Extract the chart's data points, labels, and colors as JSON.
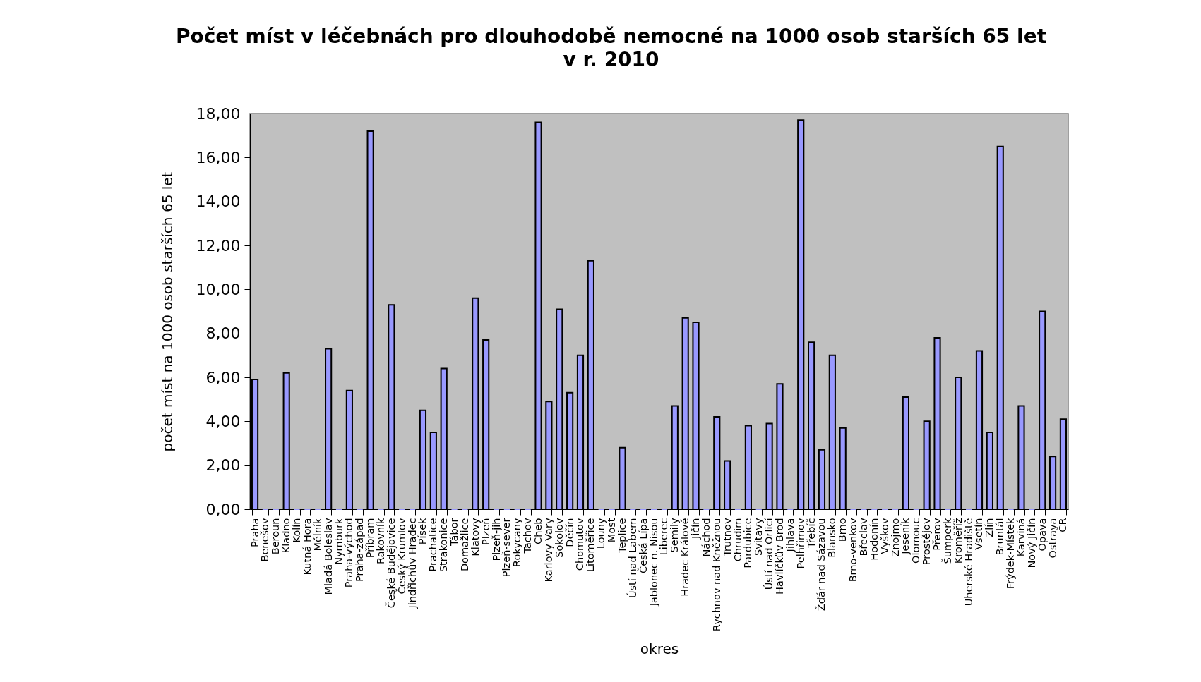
{
  "chart_data": {
    "type": "bar",
    "title": "Počet míst v léčebnách pro dlouhodobě nemocné na 1000 osob starších 65 let\nv r. 2010",
    "xlabel": "okres",
    "ylabel": "počet míst na 1000 osob starších 65 let",
    "categories": [
      "Praha",
      "Benešov",
      "Beroun",
      "Kladno",
      "Kolín",
      "Kutná Hora",
      "Mělník",
      "Mladá Boleslav",
      "Nymburk",
      "Praha-východ",
      "Praha-západ",
      "Příbram",
      "Rakovník",
      "České Budějovice",
      "Český Krumlov",
      "Jindřichův Hradec",
      "Písek",
      "Prachatice",
      "Strakonice",
      "Tábor",
      "Domažlice",
      "Klatovy",
      "Plzeň",
      "Plzeň-jih",
      "Plzeň-sever",
      "Rokycany",
      "Tachov",
      "Cheb",
      "Karlovy Vary",
      "Sokolov",
      "Děčín",
      "Chomutov",
      "Litoměřice",
      "Louny",
      "Most",
      "Teplice",
      "Ústí nad Labem",
      "Česká Lípa",
      "Jablonec n. Nisou",
      "Liberec",
      "Semily",
      "Hradec Králové",
      "Jičín",
      "Náchod",
      "Rychnov nad Kněžnou",
      "Trutnov",
      "Chrudim",
      "Pardubice",
      "Svitavy",
      "Ústí nad Orlicí",
      "Havlíčkův Brod",
      "Jihlava",
      "Pelhřimov",
      "Třebíč",
      "Žďár nad Sázavou",
      "Blansko",
      "Brno",
      "Brno-venkov",
      "Břeclav",
      "Hodonín",
      "Vyškov",
      "Znojmo",
      "Jeseník",
      "Olomouc",
      "Prostějov",
      "Přerov",
      "Šumperk",
      "Kroměříž",
      "Uherské Hradiště",
      "Vsetín",
      "Zlín",
      "Bruntál",
      "Frýdek-Místek",
      "Karviná",
      "Nový Jičín",
      "Opava",
      "Ostrava",
      "ČR"
    ],
    "values": [
      5.9,
      0,
      0,
      6.2,
      0,
      0,
      0,
      7.3,
      0,
      5.4,
      0,
      17.2,
      0,
      9.3,
      0,
      0,
      4.5,
      3.5,
      6.4,
      0,
      0,
      9.6,
      7.7,
      0,
      0,
      0,
      0,
      17.6,
      4.9,
      9.1,
      5.3,
      7.0,
      11.3,
      0,
      0,
      2.8,
      0,
      0,
      0,
      0,
      4.7,
      8.7,
      8.5,
      0,
      4.2,
      2.2,
      0,
      3.8,
      0,
      3.9,
      5.7,
      0,
      17.7,
      7.6,
      2.7,
      7.0,
      3.7,
      0,
      0,
      0,
      0,
      0,
      5.1,
      0,
      4.0,
      7.8,
      0,
      6.0,
      0,
      7.2,
      3.5,
      16.5,
      0,
      4.7,
      0,
      9.0,
      2.4,
      4.1
    ],
    "color": "#9999ff",
    "ylim": [
      0,
      18
    ],
    "yticks": [
      {
        "value": 0,
        "label": "0,00"
      },
      {
        "value": 2,
        "label": "2,00"
      },
      {
        "value": 4,
        "label": "4,00"
      },
      {
        "value": 6,
        "label": "6,00"
      },
      {
        "value": 8,
        "label": "8,00"
      },
      {
        "value": 10,
        "label": "10,00"
      },
      {
        "value": 12,
        "label": "12,00"
      },
      {
        "value": 14,
        "label": "14,00"
      },
      {
        "value": 16,
        "label": "16,00"
      },
      {
        "value": 18,
        "label": "18,00"
      }
    ]
  }
}
